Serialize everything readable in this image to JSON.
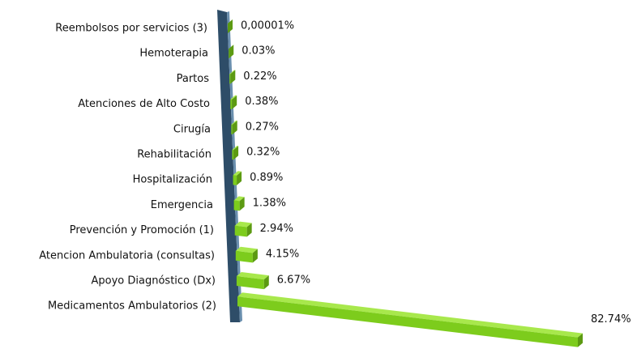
{
  "chart_data": {
    "type": "bar",
    "orientation": "horizontal",
    "categories": [
      "Reembolsos por servicios (3)",
      "Hemoterapia",
      "Partos",
      "Atenciones de Alto Costo",
      "Cirugía",
      "Rehabilitación",
      "Hospitalización",
      "Emergencia",
      "Prevención y Promoción (1)",
      "Atencion Ambulatoria (consultas)",
      "Apoyo Diagnóstico (Dx)",
      "Medicamentos Ambulatorios (2)"
    ],
    "values": [
      1e-05,
      0.03,
      0.22,
      0.38,
      0.27,
      0.32,
      0.89,
      1.38,
      2.94,
      4.15,
      6.67,
      82.74
    ],
    "value_labels": [
      "0,00001%",
      "0.03%",
      "0.22%",
      "0.38%",
      "0.27%",
      "0.32%",
      "0.89%",
      "1.38%",
      "2.94%",
      "4.15%",
      "6.67%",
      "82.74%"
    ],
    "color": "#7dcc1c"
  }
}
